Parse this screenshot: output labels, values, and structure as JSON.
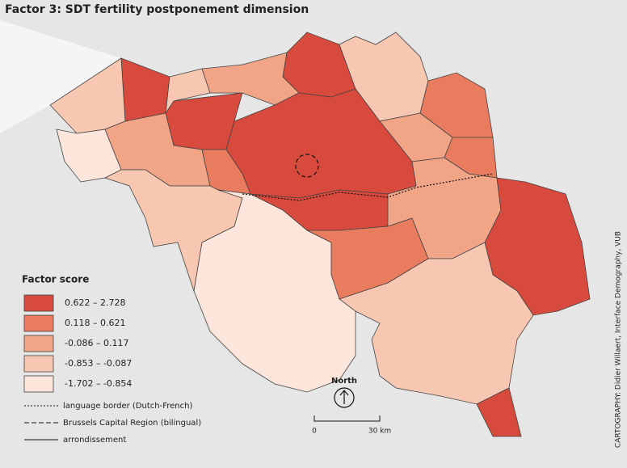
{
  "title": "Factor 3: SDT fertility postponement dimension",
  "legend": {
    "title": "Factor score",
    "classes": [
      {
        "label": "0.622 – 2.728",
        "color": "#d84a3e"
      },
      {
        "label": "0.118 – 0.621",
        "color": "#e97b5e"
      },
      {
        "label": "-0.086 –  0.117",
        "color": "#f2a487"
      },
      {
        "label": "-0.853 – -0.087",
        "color": "#f8c7b1"
      },
      {
        "label": "-1.702 – -0.854",
        "color": "#fce6dc"
      }
    ]
  },
  "line_legend": [
    "language border (Dutch-French)",
    "Brussels Capital Region (bilingual)",
    "arrondissement"
  ],
  "north": "North",
  "scale": {
    "start": "0",
    "end": "30 km"
  },
  "credit": "CARTOGRAPHY: Didier Willaert, Interface Demography, VUB"
}
